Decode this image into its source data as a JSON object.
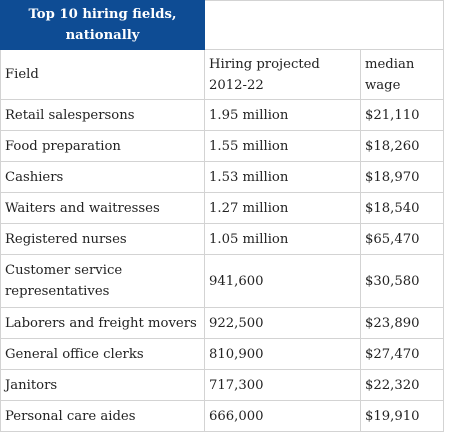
{
  "title": {
    "line1": "Top 10 hiring fields,",
    "line2": "nationally"
  },
  "columns": [
    {
      "line1": "Field",
      "line2": ""
    },
    {
      "line1": "Hiring projected",
      "line2": "2012-22"
    },
    {
      "line1": "median",
      "line2": "wage"
    }
  ],
  "rows": [
    {
      "field": "Retail salespersons",
      "hiring": "1.95 million",
      "wage": "$21,110"
    },
    {
      "field": "Food preparation",
      "hiring": "1.55 million",
      "wage": "$18,260"
    },
    {
      "field": "Cashiers",
      "hiring": "1.53 million",
      "wage": "$18,970"
    },
    {
      "field": "Waiters and waitresses",
      "hiring": "1.27 million",
      "wage": "$18,540"
    },
    {
      "field": "Registered nurses",
      "hiring": "1.05 million",
      "wage": "$65,470"
    },
    {
      "field": "Customer service representatives",
      "hiring": "941,600",
      "wage": "$30,580"
    },
    {
      "field": "Laborers and freight movers",
      "hiring": "922,500",
      "wage": "$23,890"
    },
    {
      "field": "General office clerks",
      "hiring": "810,900",
      "wage": "$27,470"
    },
    {
      "field": "Janitors",
      "hiring": "717,300",
      "wage": "$22,320"
    },
    {
      "field": "Personal care aides",
      "hiring": "666,000",
      "wage": "$19,910"
    }
  ]
}
